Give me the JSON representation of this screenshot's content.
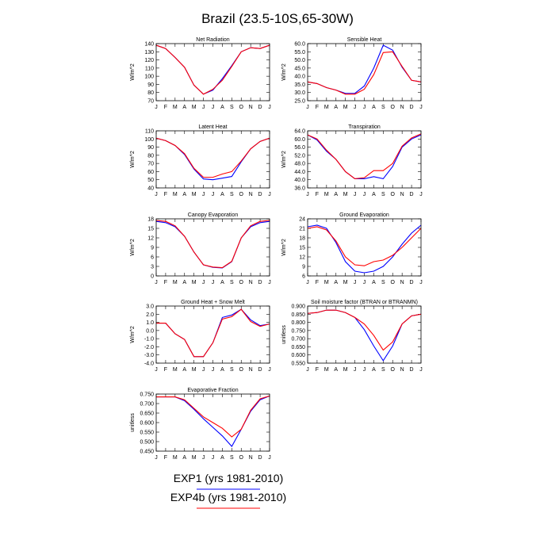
{
  "title": "Brazil (23.5-10S,65-30W)",
  "legend": [
    {
      "name": "EXP1 (yrs 1981-2010)",
      "color": "#0000ff"
    },
    {
      "name": "EXP4b (yrs 1981-2010)",
      "color": "#ff0000"
    }
  ],
  "chart_data": [
    {
      "type": "line",
      "title": "Net Radiation",
      "y_label": "W/m^2",
      "categories": [
        "J",
        "F",
        "M",
        "A",
        "M",
        "J",
        "J",
        "A",
        "S",
        "O",
        "N",
        "D",
        "J"
      ],
      "ylim": [
        70,
        140
      ],
      "yticks": [
        70,
        80,
        90,
        100,
        110,
        120,
        130,
        140
      ],
      "series": [
        {
          "color": "#0000ff",
          "values": [
            138,
            134,
            123,
            111,
            89,
            78,
            83,
            97,
            113,
            130,
            135,
            134,
            138
          ]
        },
        {
          "color": "#ff0000",
          "values": [
            138,
            134,
            123,
            111,
            89,
            78,
            84,
            95,
            112,
            130,
            135,
            134,
            138
          ]
        }
      ]
    },
    {
      "type": "line",
      "title": "Sensible Heat",
      "y_label": "W/m^2",
      "categories": [
        "J",
        "F",
        "M",
        "A",
        "M",
        "J",
        "J",
        "A",
        "S",
        "O",
        "N",
        "D",
        "J"
      ],
      "ylim": [
        25,
        60
      ],
      "yticks": [
        {
          "value": 25,
          "label": "25.0"
        },
        {
          "value": 30,
          "label": "30.0"
        },
        {
          "value": 35,
          "label": "35.0"
        },
        {
          "value": 40,
          "label": "40.0"
        },
        {
          "value": 45,
          "label": "45.0"
        },
        {
          "value": 50,
          "label": "50.0"
        },
        {
          "value": 55,
          "label": "55.0"
        },
        {
          "value": 60,
          "label": "60.0"
        }
      ],
      "series": [
        {
          "color": "#0000ff",
          "values": [
            36.5,
            35.5,
            33,
            31.5,
            29.5,
            29.5,
            34,
            45,
            59,
            56,
            45.5,
            37.5,
            36.5
          ]
        },
        {
          "color": "#ff0000",
          "values": [
            36.5,
            35.5,
            33,
            31.5,
            29,
            29,
            32,
            41,
            54.5,
            55,
            46,
            37.5,
            36.5
          ]
        }
      ]
    },
    {
      "type": "line",
      "title": "Latent Heat",
      "y_label": "W/m^2",
      "categories": [
        "J",
        "F",
        "M",
        "A",
        "M",
        "J",
        "J",
        "A",
        "S",
        "O",
        "N",
        "D",
        "J"
      ],
      "ylim": [
        40,
        110
      ],
      "yticks": [
        40,
        50,
        60,
        70,
        80,
        90,
        100,
        110
      ],
      "series": [
        {
          "color": "#0000ff",
          "values": [
            101,
            98,
            92,
            81,
            63,
            51,
            50,
            52,
            54,
            72,
            88,
            97,
            101
          ]
        },
        {
          "color": "#ff0000",
          "values": [
            101,
            98,
            92,
            82,
            64,
            53,
            53,
            57,
            60,
            73,
            88,
            97,
            101
          ]
        }
      ]
    },
    {
      "type": "line",
      "title": "Transpiration",
      "y_label": "W/m^2",
      "categories": [
        "J",
        "F",
        "M",
        "A",
        "M",
        "J",
        "J",
        "A",
        "S",
        "O",
        "N",
        "D",
        "J"
      ],
      "ylim": [
        36,
        64
      ],
      "yticks": [
        {
          "value": 36,
          "label": "36.0"
        },
        {
          "value": 40,
          "label": "40.0"
        },
        {
          "value": 44,
          "label": "44.0"
        },
        {
          "value": 48,
          "label": "48.0"
        },
        {
          "value": 52,
          "label": "52.0"
        },
        {
          "value": 56,
          "label": "56.0"
        },
        {
          "value": 60,
          "label": "60.0"
        },
        {
          "value": 64,
          "label": "64.0"
        }
      ],
      "series": [
        {
          "color": "#0000ff",
          "values": [
            62,
            59.5,
            54,
            50,
            44,
            40.5,
            40.5,
            41.5,
            40.5,
            46.5,
            56,
            60,
            62
          ]
        },
        {
          "color": "#ff0000",
          "values": [
            62,
            60,
            54.5,
            50,
            44,
            40.5,
            41,
            44.5,
            44.5,
            48,
            56.5,
            60.5,
            62.5
          ]
        }
      ]
    },
    {
      "type": "line",
      "title": "Canopy Evaporation",
      "y_label": "W/m^2",
      "categories": [
        "J",
        "F",
        "M",
        "A",
        "M",
        "J",
        "J",
        "A",
        "S",
        "O",
        "N",
        "D",
        "J"
      ],
      "ylim": [
        0,
        18
      ],
      "yticks": [
        0,
        3,
        6,
        9,
        12,
        15,
        18
      ],
      "series": [
        {
          "color": "#0000ff",
          "values": [
            17.2,
            16.8,
            15.5,
            12.5,
            7.5,
            3.5,
            2.7,
            2.5,
            4.5,
            12,
            15.5,
            16.8,
            17.2
          ]
        },
        {
          "color": "#ff0000",
          "values": [
            17.5,
            17.2,
            15.8,
            12.5,
            7.5,
            3.5,
            2.8,
            2.6,
            4.6,
            12,
            15.8,
            17.2,
            17.5
          ]
        }
      ]
    },
    {
      "type": "line",
      "title": "Ground Evaporation",
      "y_label": "W/m^2",
      "categories": [
        "J",
        "F",
        "M",
        "A",
        "M",
        "J",
        "J",
        "A",
        "S",
        "O",
        "N",
        "D",
        "J"
      ],
      "ylim": [
        6,
        24
      ],
      "yticks": [
        6,
        9,
        12,
        15,
        18,
        21,
        24
      ],
      "series": [
        {
          "color": "#0000ff",
          "values": [
            21.5,
            22,
            21,
            16.5,
            10.5,
            7.5,
            7,
            7.5,
            9,
            12,
            16,
            19.5,
            22
          ]
        },
        {
          "color": "#ff0000",
          "values": [
            21,
            21.5,
            20.5,
            17,
            12,
            9.5,
            9.2,
            10.5,
            11,
            12.5,
            15,
            18,
            21
          ]
        }
      ]
    },
    {
      "type": "line",
      "title": "Ground Heat + Snow Melt",
      "y_label": "W/m^2",
      "categories": [
        "J",
        "F",
        "M",
        "A",
        "M",
        "J",
        "J",
        "A",
        "S",
        "O",
        "N",
        "D",
        "J"
      ],
      "ylim": [
        -4,
        3
      ],
      "yticks": [
        {
          "value": -4,
          "label": "-4.0"
        },
        {
          "value": -3,
          "label": "-3.0"
        },
        {
          "value": -2,
          "label": "-2.0"
        },
        {
          "value": -1,
          "label": "-1.0"
        },
        {
          "value": 0,
          "label": "0.0"
        },
        {
          "value": 1,
          "label": "1.0"
        },
        {
          "value": 2,
          "label": "2.0"
        },
        {
          "value": 3,
          "label": "3.0"
        }
      ],
      "series": [
        {
          "color": "#0000ff",
          "values": [
            0.9,
            0.9,
            -0.4,
            -1.1,
            -3.2,
            -3.2,
            -1.5,
            1.6,
            1.9,
            2.6,
            1.3,
            0.6,
            0.8
          ]
        },
        {
          "color": "#ff0000",
          "values": [
            0.9,
            0.9,
            -0.4,
            -1.1,
            -3.2,
            -3.2,
            -1.5,
            1.4,
            1.7,
            2.6,
            1.1,
            0.5,
            0.8
          ]
        }
      ]
    },
    {
      "type": "line",
      "title": "Soil moisture factor (BTRAN or BTRANMN)",
      "y_label": "unitless",
      "categories": [
        "J",
        "F",
        "M",
        "A",
        "M",
        "J",
        "J",
        "A",
        "S",
        "O",
        "N",
        "D",
        "J"
      ],
      "ylim": [
        0.55,
        0.9
      ],
      "yticks": [
        {
          "value": 0.55,
          "label": "0.550"
        },
        {
          "value": 0.6,
          "label": "0.600"
        },
        {
          "value": 0.65,
          "label": "0.650"
        },
        {
          "value": 0.7,
          "label": "0.700"
        },
        {
          "value": 0.75,
          "label": "0.750"
        },
        {
          "value": 0.8,
          "label": "0.800"
        },
        {
          "value": 0.85,
          "label": "0.850"
        },
        {
          "value": 0.9,
          "label": "0.900"
        }
      ],
      "series": [
        {
          "color": "#0000ff",
          "values": [
            0.855,
            0.86,
            0.875,
            0.875,
            0.86,
            0.83,
            0.755,
            0.655,
            0.565,
            0.655,
            0.79,
            0.84,
            0.85
          ]
        },
        {
          "color": "#ff0000",
          "values": [
            0.855,
            0.86,
            0.875,
            0.875,
            0.86,
            0.83,
            0.79,
            0.72,
            0.63,
            0.68,
            0.79,
            0.84,
            0.85
          ]
        }
      ]
    },
    {
      "type": "line",
      "title": "Evaporative Fraction",
      "y_label": "unitless",
      "categories": [
        "J",
        "F",
        "M",
        "A",
        "M",
        "J",
        "J",
        "A",
        "S",
        "O",
        "N",
        "D",
        "J"
      ],
      "ylim": [
        0.45,
        0.75
      ],
      "yticks": [
        {
          "value": 0.45,
          "label": "0.450"
        },
        {
          "value": 0.5,
          "label": "0.500"
        },
        {
          "value": 0.55,
          "label": "0.550"
        },
        {
          "value": 0.6,
          "label": "0.600"
        },
        {
          "value": 0.65,
          "label": "0.650"
        },
        {
          "value": 0.7,
          "label": "0.700"
        },
        {
          "value": 0.75,
          "label": "0.750"
        }
      ],
      "series": [
        {
          "color": "#0000ff",
          "values": [
            0.735,
            0.735,
            0.735,
            0.715,
            0.67,
            0.62,
            0.575,
            0.53,
            0.475,
            0.565,
            0.66,
            0.72,
            0.74
          ]
        },
        {
          "color": "#ff0000",
          "values": [
            0.735,
            0.735,
            0.735,
            0.72,
            0.675,
            0.63,
            0.6,
            0.57,
            0.525,
            0.565,
            0.665,
            0.725,
            0.74
          ]
        }
      ]
    }
  ]
}
